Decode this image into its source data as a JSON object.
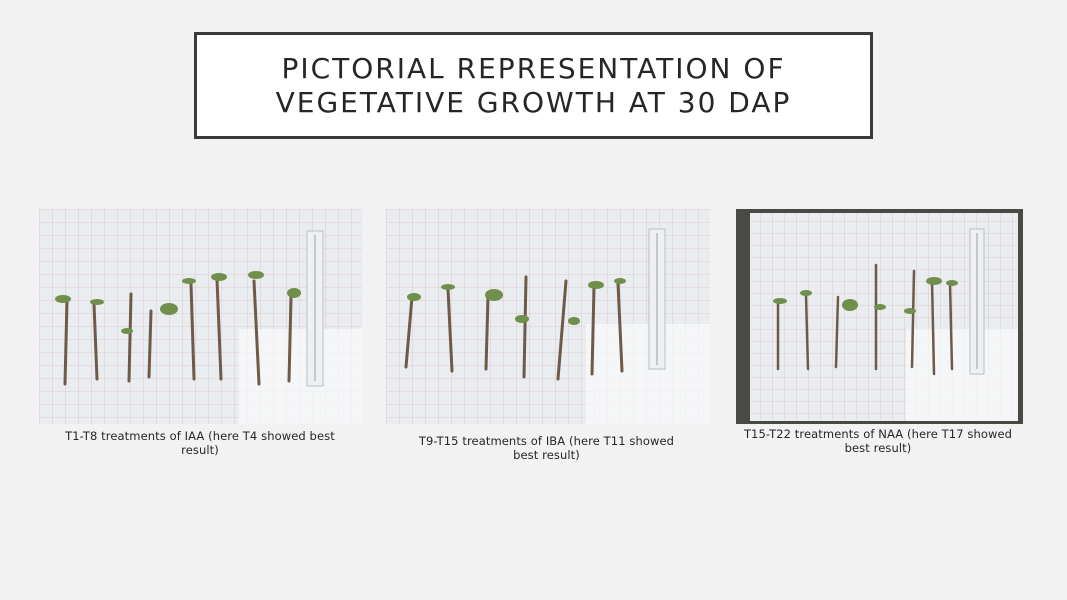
{
  "slide": {
    "title_line1": "PICTORIAL REPRESENTATION OF",
    "title_line2": "VEGETATIVE GROWTH AT 30 DAP"
  },
  "panels": [
    {
      "caption": "T1-T8 treatments of IAA (here T4 showed best result)"
    },
    {
      "caption": "T9-T15 treatments of IBA (here T11 showed best result)"
    },
    {
      "caption": "T15-T22 treatments of NAA (here T17 showed best result)"
    }
  ],
  "colors": {
    "background": "#f2f2f2",
    "title_border": "#3a3a3a",
    "sheet": "#eef1f4",
    "grid": "#d9a8b0",
    "stem": "#6e5a4a",
    "leaf": "#6f8f4a"
  }
}
